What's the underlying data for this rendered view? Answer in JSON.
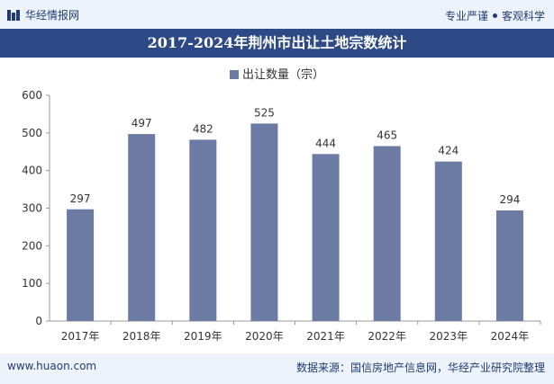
{
  "header": {
    "brand": "华经情报网",
    "tagline_left": "专业严谨",
    "tagline_right": "客观科学"
  },
  "chart_data": {
    "type": "bar",
    "title": "2017-2024年荆州市出让土地宗数统计",
    "categories": [
      "2017年",
      "2018年",
      "2019年",
      "2020年",
      "2021年",
      "2022年",
      "2023年",
      "2024年"
    ],
    "series": [
      {
        "name": "出让数量（宗）",
        "values": [
          297,
          497,
          482,
          525,
          444,
          465,
          424,
          294
        ]
      }
    ],
    "yticks": [
      0,
      100,
      200,
      300,
      400,
      500,
      600
    ],
    "ylim": [
      0,
      600
    ],
    "grid": false,
    "legend": "top-center",
    "bar_color": "#6b7ba3"
  },
  "footer": {
    "website": "www.huaon.com",
    "source": "数据来源：国信房地产信息网，华经产业研究院整理"
  }
}
